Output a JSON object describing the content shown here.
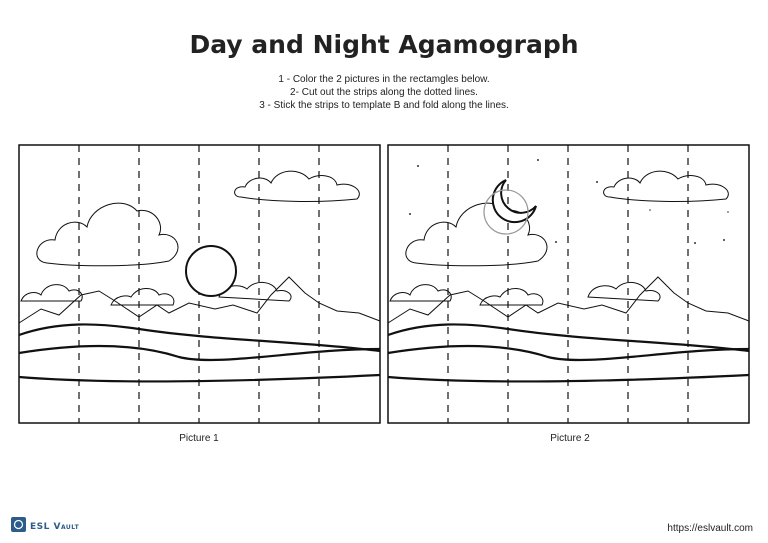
{
  "header": {
    "title": "Day and Night Agamograph"
  },
  "instructions": [
    "1 - Color the 2 pictures in the rectamgles below.",
    "2- Cut out the strips along the dotted lines.",
    "3 - Stick the strips to template B and fold along the lines."
  ],
  "pictures": [
    {
      "label": "Picture 1"
    },
    {
      "label": "Picture 2"
    }
  ],
  "footer": {
    "logo": "ESL Vault",
    "url": "https://eslvault.com"
  }
}
